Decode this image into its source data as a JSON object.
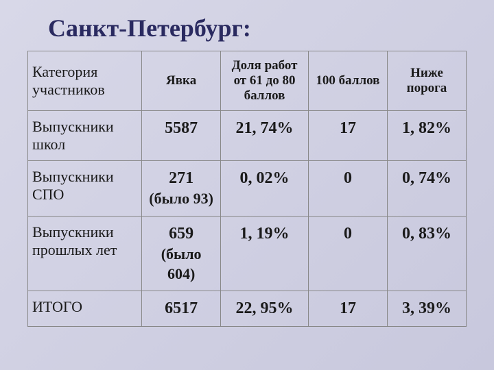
{
  "title": "Санкт-Петербург:",
  "table": {
    "columns": [
      "Категория участников",
      "Явка",
      "Доля работ от 61 до 80 баллов",
      "100 баллов",
      "Ниже порога"
    ],
    "rows": [
      {
        "label": "Выпускники школ",
        "c1": "5587",
        "c2": "21, 74%",
        "c3": "17",
        "c4": "1, 82%"
      },
      {
        "label": "Выпускники СПО",
        "c1": "271",
        "c1_sub": "(было 93)",
        "c2": "0, 02%",
        "c3": "0",
        "c4": "0, 74%"
      },
      {
        "label": "Выпускники прошлых лет",
        "c1": "659",
        "c1_sub": "(было 604)",
        "c2": "1, 19%",
        "c3": "0",
        "c4": "0, 83%"
      },
      {
        "label": "ИТОГО",
        "c1": "6517",
        "c2": "22, 95%",
        "c3": "17",
        "c4": "3, 39%"
      }
    ]
  },
  "styling": {
    "title_color": "#2a2a60",
    "title_fontsize": 36,
    "header_fontsize": 19,
    "rowlabel_fontsize": 22,
    "data_fontsize": 24,
    "border_color": "#888888",
    "background_gradient_start": "#d8d8e8",
    "background_gradient_end": "#c8c8dd",
    "text_color": "#1a1a1a",
    "font_family": "Times New Roman",
    "col_widths_pct": [
      26,
      18,
      20,
      18,
      18
    ]
  }
}
